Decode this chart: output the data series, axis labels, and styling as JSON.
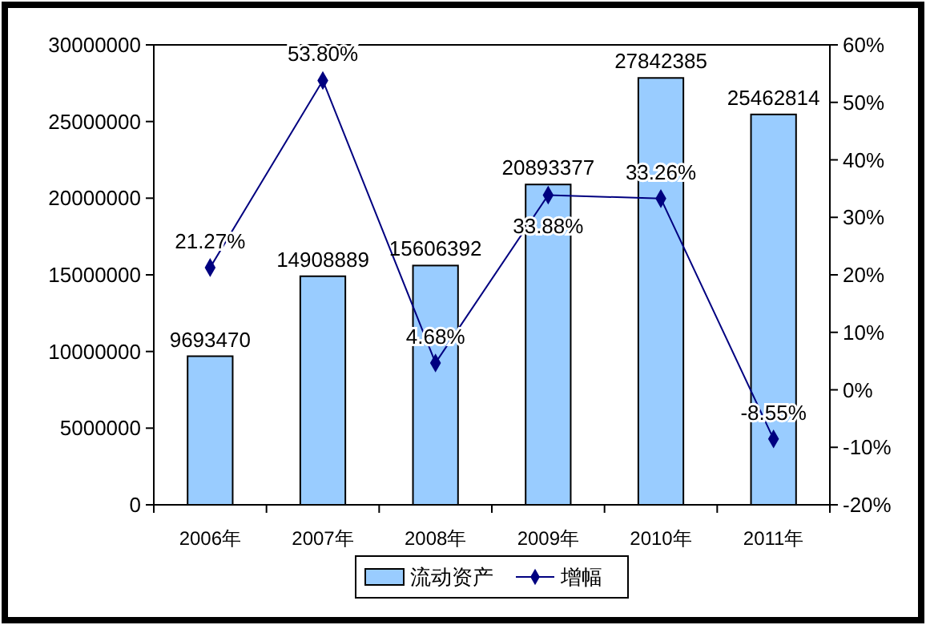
{
  "chart_data": {
    "type": "bar",
    "categories": [
      "2006年",
      "2007年",
      "2008年",
      "2009年",
      "2010年",
      "2011年"
    ],
    "series": [
      {
        "name": "流动资产",
        "color": "#99ccff",
        "values": [
          9693470,
          14908889,
          15606392,
          20893377,
          27842385,
          25462814
        ],
        "value_labels": [
          "9693470",
          "14908889",
          "15606392",
          "20893377",
          "27842385",
          "25462814"
        ]
      },
      {
        "name": "增幅",
        "type": "line",
        "axis": "y2",
        "color": "#000080",
        "marker": "diamond",
        "values": [
          21.27,
          53.8,
          4.68,
          33.88,
          33.26,
          -8.55
        ],
        "value_labels": [
          "21.27%",
          "53.80%",
          "4.68%",
          "33.88%",
          "33.26%",
          "-8.55%"
        ]
      }
    ],
    "ylim": [
      0,
      30000000
    ],
    "yticks": [
      0,
      5000000,
      10000000,
      15000000,
      20000000,
      25000000,
      30000000
    ],
    "y2lim": [
      -20,
      60
    ],
    "y2ticks": [
      {
        "value": -20,
        "label": "-20%"
      },
      {
        "value": -10,
        "label": "-10%"
      },
      {
        "value": 0,
        "label": "0%"
      },
      {
        "value": 10,
        "label": "10%"
      },
      {
        "value": 20,
        "label": "20%"
      },
      {
        "value": 30,
        "label": "30%"
      },
      {
        "value": 40,
        "label": "40%"
      },
      {
        "value": 50,
        "label": "50%"
      },
      {
        "value": 60,
        "label": "60%"
      }
    ],
    "legend": "bottom",
    "grid": false
  }
}
